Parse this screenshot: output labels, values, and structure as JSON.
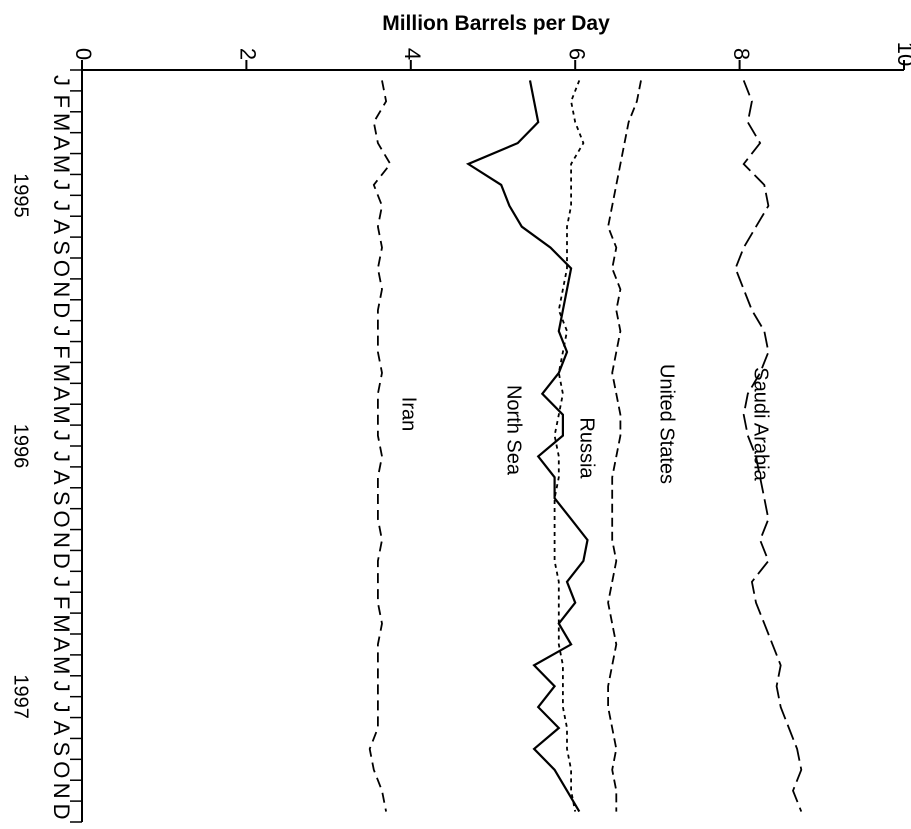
{
  "chart_data": {
    "type": "line",
    "orientation": "rotated-90",
    "title": "",
    "ylabel": "Million Barrels per Day",
    "xlabel": "",
    "ylim": [
      0,
      10
    ],
    "y_ticks": [
      "0",
      "2",
      "4",
      "6",
      "8",
      "10"
    ],
    "x": [
      "J",
      "F",
      "M",
      "A",
      "M",
      "J",
      "J",
      "A",
      "S",
      "O",
      "N",
      "D",
      "J",
      "F",
      "M",
      "A",
      "M",
      "J",
      "J",
      "A",
      "S",
      "O",
      "N",
      "D",
      "J",
      "F",
      "M",
      "A",
      "M",
      "J",
      "J",
      "A",
      "S",
      "O",
      "N",
      "D"
    ],
    "year_labels": [
      {
        "label": "1995",
        "month_index": 5
      },
      {
        "label": "1996",
        "month_index": 17
      },
      {
        "label": "1997",
        "month_index": 29
      }
    ],
    "grid": false,
    "series": [
      {
        "name": "Saudi Arabia",
        "style": "long-dash",
        "values": [
          8.05,
          8.15,
          8.1,
          8.25,
          8.05,
          8.3,
          8.35,
          8.2,
          8.05,
          7.95,
          8.05,
          8.15,
          8.3,
          8.35,
          8.25,
          8.1,
          8.05,
          8.1,
          8.2,
          8.25,
          8.3,
          8.35,
          8.25,
          8.35,
          8.15,
          8.2,
          8.3,
          8.4,
          8.5,
          8.45,
          8.5,
          8.6,
          8.7,
          8.75,
          8.65,
          8.75
        ]
      },
      {
        "name": "United States",
        "style": "dashed",
        "values": [
          6.8,
          6.75,
          6.65,
          6.6,
          6.55,
          6.5,
          6.45,
          6.4,
          6.5,
          6.45,
          6.55,
          6.5,
          6.55,
          6.5,
          6.45,
          6.5,
          6.55,
          6.55,
          6.5,
          6.45,
          6.45,
          6.45,
          6.45,
          6.5,
          6.45,
          6.4,
          6.45,
          6.5,
          6.45,
          6.4,
          6.4,
          6.45,
          6.5,
          6.45,
          6.5,
          6.5
        ]
      },
      {
        "name": "Russia",
        "style": "short-dash",
        "values": [
          6.05,
          5.95,
          6.0,
          6.1,
          5.95,
          5.95,
          5.95,
          5.9,
          5.9,
          5.9,
          5.85,
          5.8,
          5.9,
          5.85,
          5.8,
          5.85,
          5.8,
          5.75,
          5.8,
          5.8,
          5.75,
          5.75,
          5.75,
          5.75,
          5.8,
          5.8,
          5.8,
          5.8,
          5.85,
          5.85,
          5.85,
          5.9,
          5.9,
          5.95,
          5.95,
          6.0
        ]
      },
      {
        "name": "North Sea",
        "style": "solid",
        "values": [
          5.45,
          5.5,
          5.55,
          5.3,
          4.7,
          5.1,
          5.2,
          5.35,
          5.7,
          5.95,
          5.9,
          5.85,
          5.8,
          5.9,
          5.8,
          5.6,
          5.85,
          5.85,
          5.55,
          5.75,
          5.75,
          5.95,
          6.15,
          6.1,
          5.9,
          6.0,
          5.8,
          5.95,
          5.5,
          5.75,
          5.55,
          5.8,
          5.5,
          5.75,
          5.9,
          6.05
        ]
      },
      {
        "name": "Iran",
        "style": "medium-dash",
        "values": [
          3.65,
          3.7,
          3.55,
          3.6,
          3.75,
          3.55,
          3.65,
          3.6,
          3.65,
          3.6,
          3.65,
          3.6,
          3.6,
          3.6,
          3.65,
          3.6,
          3.6,
          3.6,
          3.65,
          3.6,
          3.6,
          3.6,
          3.65,
          3.6,
          3.6,
          3.6,
          3.65,
          3.6,
          3.6,
          3.6,
          3.6,
          3.6,
          3.5,
          3.55,
          3.65,
          3.7
        ]
      }
    ]
  }
}
